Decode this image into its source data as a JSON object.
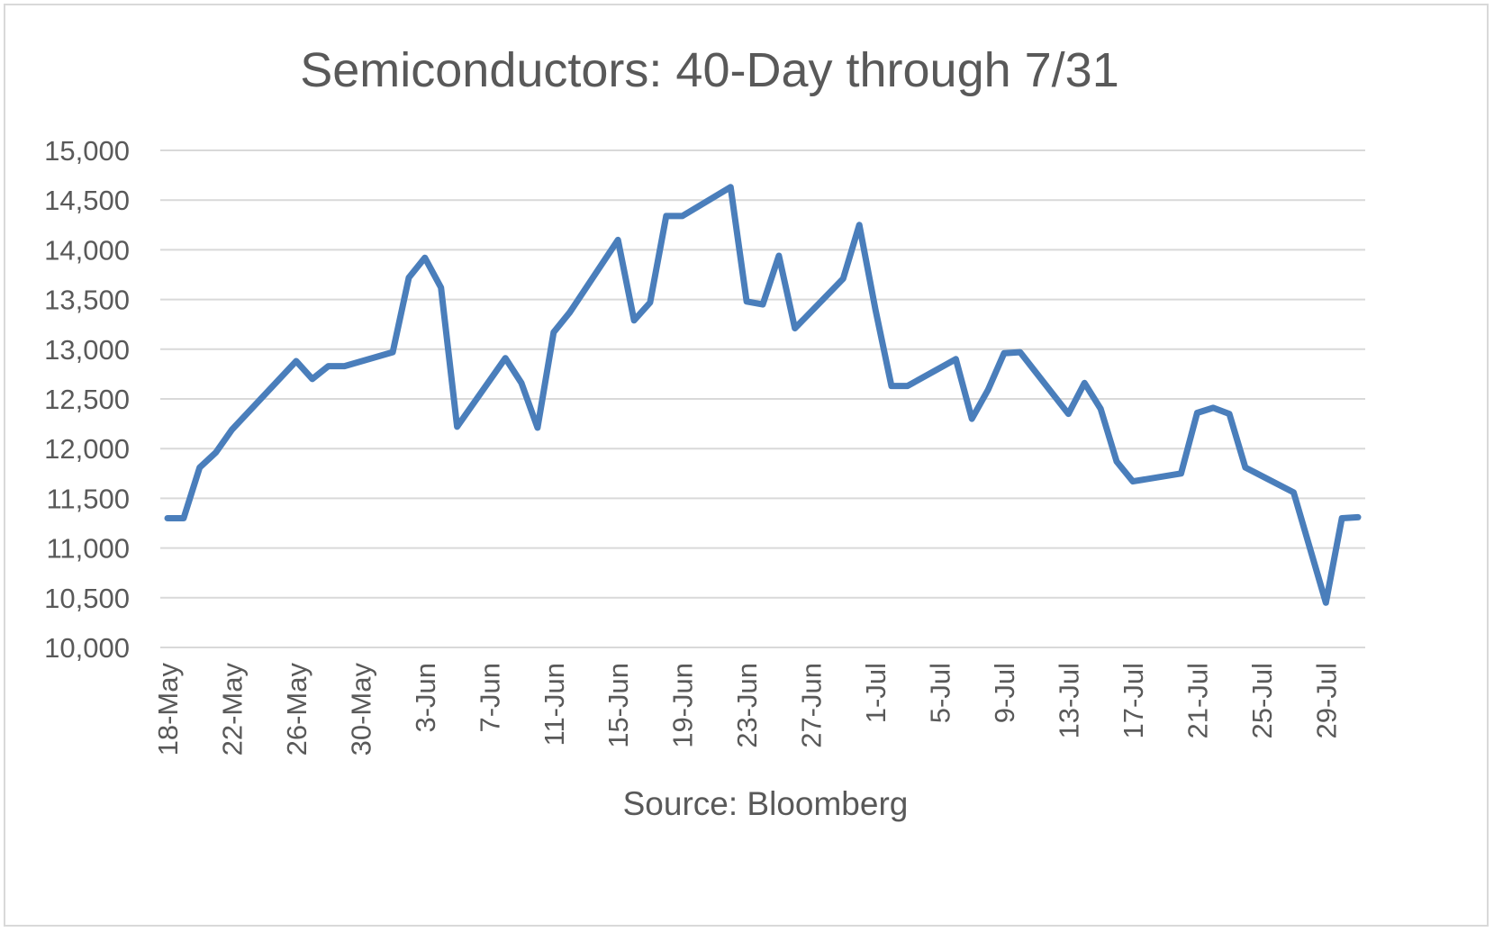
{
  "chart_data": {
    "type": "line",
    "title": "Semiconductors: 40-Day through 7/31",
    "xlabel": "Source: Bloomberg",
    "ylabel": "",
    "ylim": [
      10000,
      15000
    ],
    "ytick_step": 500,
    "yticks": [
      "10,000",
      "10,500",
      "11,000",
      "11,500",
      "12,000",
      "12,500",
      "13,000",
      "13,500",
      "14,000",
      "14,500",
      "15,000"
    ],
    "xlim": [
      "2018-05-18",
      "2018-07-31"
    ],
    "xtick_dates": [
      "2018-05-18",
      "2018-05-22",
      "2018-05-26",
      "2018-05-30",
      "2018-06-03",
      "2018-06-07",
      "2018-06-11",
      "2018-06-15",
      "2018-06-19",
      "2018-06-23",
      "2018-06-27",
      "2018-07-01",
      "2018-07-05",
      "2018-07-09",
      "2018-07-13",
      "2018-07-17",
      "2018-07-21",
      "2018-07-25",
      "2018-07-29"
    ],
    "xtick_labels": [
      "18-May",
      "22-May",
      "26-May",
      "30-May",
      "3-Jun",
      "7-Jun",
      "11-Jun",
      "15-Jun",
      "19-Jun",
      "23-Jun",
      "27-Jun",
      "1-Jul",
      "5-Jul",
      "9-Jul",
      "13-Jul",
      "17-Jul",
      "21-Jul",
      "25-Jul",
      "29-Jul"
    ],
    "grid": true,
    "legend": "none",
    "color": "#4a7ebb",
    "series": [
      {
        "points": [
          [
            "2018-05-18",
            11300
          ],
          [
            "2018-05-19",
            11300
          ],
          [
            "2018-05-20",
            11810
          ],
          [
            "2018-05-21",
            11960
          ],
          [
            "2018-05-22",
            12190
          ],
          [
            "2018-05-26",
            12880
          ],
          [
            "2018-05-27",
            12700
          ],
          [
            "2018-05-28",
            12830
          ],
          [
            "2018-05-29",
            12830
          ],
          [
            "2018-06-01",
            12970
          ],
          [
            "2018-06-02",
            13720
          ],
          [
            "2018-06-03",
            13920
          ],
          [
            "2018-06-04",
            13620
          ],
          [
            "2018-06-05",
            12220
          ],
          [
            "2018-06-08",
            12910
          ],
          [
            "2018-06-09",
            12660
          ],
          [
            "2018-06-10",
            12210
          ],
          [
            "2018-06-11",
            13170
          ],
          [
            "2018-06-12",
            13370
          ],
          [
            "2018-06-15",
            14100
          ],
          [
            "2018-06-16",
            13290
          ],
          [
            "2018-06-17",
            13470
          ],
          [
            "2018-06-18",
            14340
          ],
          [
            "2018-06-19",
            14340
          ],
          [
            "2018-06-22",
            14630
          ],
          [
            "2018-06-23",
            13480
          ],
          [
            "2018-06-24",
            13450
          ],
          [
            "2018-06-25",
            13940
          ],
          [
            "2018-06-26",
            13210
          ],
          [
            "2018-06-29",
            13710
          ],
          [
            "2018-06-30",
            14250
          ],
          [
            "2018-07-01",
            13400
          ],
          [
            "2018-07-02",
            12630
          ],
          [
            "2018-07-03",
            12630
          ],
          [
            "2018-07-06",
            12900
          ],
          [
            "2018-07-07",
            12300
          ],
          [
            "2018-07-08",
            12590
          ],
          [
            "2018-07-09",
            12960
          ],
          [
            "2018-07-10",
            12970
          ],
          [
            "2018-07-13",
            12350
          ],
          [
            "2018-07-14",
            12660
          ],
          [
            "2018-07-15",
            12400
          ],
          [
            "2018-07-16",
            11870
          ],
          [
            "2018-07-17",
            11670
          ],
          [
            "2018-07-20",
            11750
          ],
          [
            "2018-07-21",
            12360
          ],
          [
            "2018-07-22",
            12410
          ],
          [
            "2018-07-23",
            12350
          ],
          [
            "2018-07-24",
            11810
          ],
          [
            "2018-07-27",
            11560
          ],
          [
            "2018-07-29",
            10450
          ],
          [
            "2018-07-30",
            11300
          ],
          [
            "2018-07-31",
            11310
          ]
        ]
      }
    ]
  }
}
